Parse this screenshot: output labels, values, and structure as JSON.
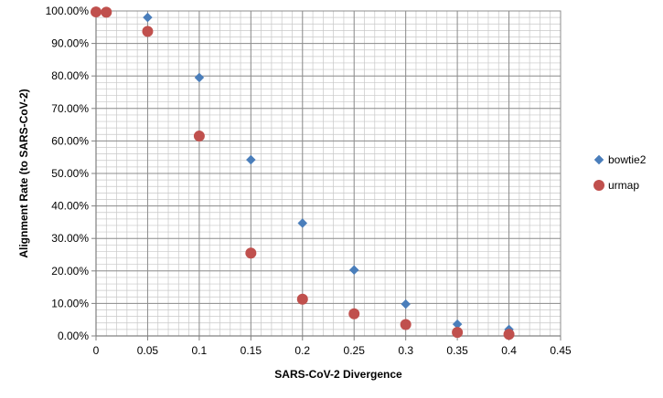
{
  "chart_data": {
    "type": "scatter",
    "xlabel": "SARS-CoV-2 Divergence",
    "ylabel": "Alignment Rate (to SARS-CoV-2)",
    "xlim": [
      0,
      0.45
    ],
    "ylim": [
      0,
      1
    ],
    "x_ticks": [
      "0",
      "0.05",
      "0.1",
      "0.15",
      "0.2",
      "0.25",
      "0.3",
      "0.35",
      "0.4",
      "0.45"
    ],
    "y_ticks": [
      "0.00%",
      "10.00%",
      "20.00%",
      "30.00%",
      "40.00%",
      "50.00%",
      "60.00%",
      "70.00%",
      "80.00%",
      "90.00%",
      "100.00%"
    ],
    "grid": true,
    "legend_position": "right",
    "series": [
      {
        "name": "bowtie2",
        "marker": "diamond",
        "color": "#4a7ebb",
        "x": [
          0,
          0.01,
          0.05,
          0.1,
          0.15,
          0.2,
          0.25,
          0.3,
          0.35,
          0.4
        ],
        "y": [
          0.999,
          0.997,
          0.98,
          0.795,
          0.542,
          0.347,
          0.203,
          0.098,
          0.036,
          0.02
        ]
      },
      {
        "name": "urmap",
        "marker": "circle",
        "color": "#c0504d",
        "x": [
          0,
          0.01,
          0.05,
          0.1,
          0.15,
          0.2,
          0.25,
          0.3,
          0.35,
          0.4
        ],
        "y": [
          0.997,
          0.996,
          0.937,
          0.615,
          0.255,
          0.113,
          0.068,
          0.035,
          0.011,
          0.005
        ]
      }
    ]
  }
}
